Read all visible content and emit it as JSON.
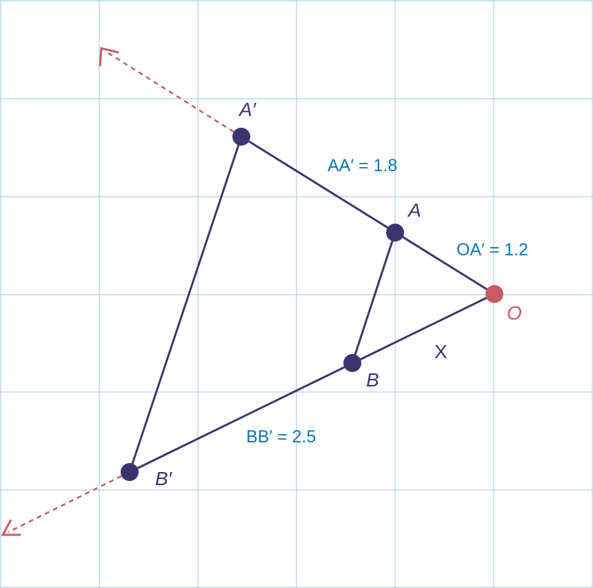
{
  "points": {
    "A_prime": "A′",
    "A": "A",
    "O": "O",
    "B": "B",
    "B_prime": "B′"
  },
  "measurements": {
    "aa_prime": "AA′ = 1.8",
    "oa_prime": "OA′ = 1.2",
    "bb_prime": "BB′ = 2.5",
    "unknown": "X"
  },
  "colors": {
    "grid": "#a9d3ec",
    "triangle": "#3a3570",
    "center": "#c95a64",
    "measurement_text": "#0b78b8"
  }
}
